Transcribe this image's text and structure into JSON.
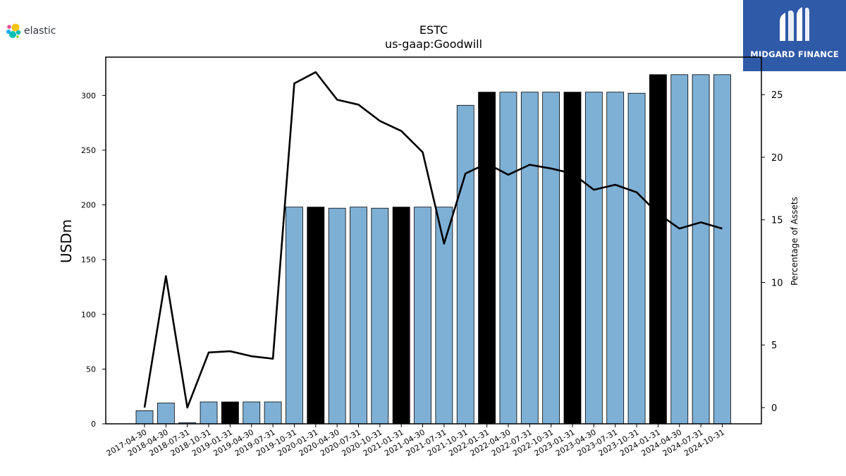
{
  "logos": {
    "elastic_text": "elastic",
    "midgard_text": "MIDGARD FINANCE"
  },
  "chart_data": {
    "type": "bar",
    "title": "ESTC",
    "subtitle": "us-gaap:Goodwill",
    "ylabel": "USDm",
    "y2label": "Percentage of Assets",
    "ylim": [
      0,
      335
    ],
    "y2lim": [
      -1.3,
      28
    ],
    "yticks": [
      0,
      50,
      100,
      150,
      200,
      250,
      300
    ],
    "y2ticks": [
      0,
      5,
      10,
      15,
      20,
      25
    ],
    "categories": [
      "2017-04-30",
      "2018-04-30",
      "2018-07-31",
      "2018-10-31",
      "2019-01-31",
      "2019-04-30",
      "2019-07-31",
      "2019-10-31",
      "2020-01-31",
      "2020-04-30",
      "2020-07-31",
      "2020-10-31",
      "2021-01-31",
      "2021-04-30",
      "2021-07-31",
      "2021-10-31",
      "2022-01-31",
      "2022-04-30",
      "2022-07-31",
      "2022-10-31",
      "2023-01-31",
      "2023-04-30",
      "2023-07-31",
      "2023-10-31",
      "2024-01-31",
      "2024-04-30",
      "2024-07-31",
      "2024-10-31"
    ],
    "series": [
      {
        "name": "",
        "kind": "bar",
        "values": [
          12,
          19,
          1,
          20,
          20,
          20,
          20,
          198,
          198,
          197,
          198,
          197,
          198,
          198,
          198,
          291,
          303,
          303,
          303,
          303,
          303,
          303,
          303,
          302,
          319,
          319,
          319,
          319
        ],
        "highlight": [
          false,
          false,
          false,
          false,
          true,
          false,
          false,
          false,
          true,
          false,
          false,
          false,
          true,
          false,
          false,
          false,
          true,
          false,
          false,
          false,
          true,
          false,
          false,
          false,
          true,
          false,
          false,
          false
        ],
        "color": "#7eb0d5",
        "highlight_color": "#000000"
      },
      {
        "name": "",
        "kind": "line",
        "axis": "right",
        "values": [
          0.0,
          10.5,
          0.0,
          4.4,
          4.5,
          4.1,
          3.9,
          25.9,
          26.8,
          24.6,
          24.2,
          22.9,
          22.1,
          20.4,
          13.1,
          18.7,
          19.5,
          18.6,
          19.4,
          19.1,
          18.7,
          17.4,
          17.8,
          17.2,
          15.5,
          14.3,
          14.8,
          14.3
        ],
        "color": "#000000"
      }
    ],
    "grid": false,
    "legend": "none"
  }
}
